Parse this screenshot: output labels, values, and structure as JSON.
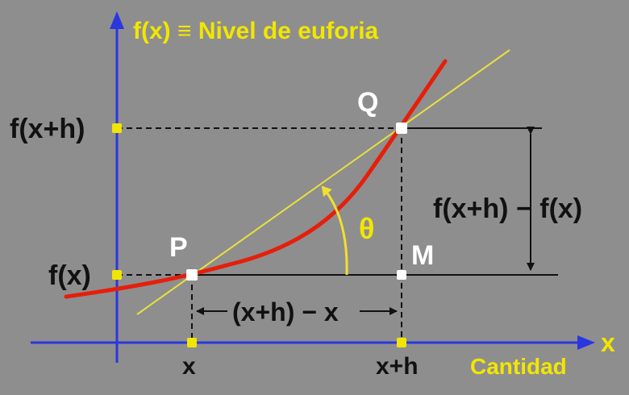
{
  "title": "f(x) ≡ Nivel de euforia",
  "x_axis_letter": "x",
  "x_axis_name": "Cantidad",
  "y_tick_upper": "f(x+h)",
  "y_tick_lower": "f(x)",
  "x_tick_left": "x",
  "x_tick_right": "x+h",
  "point_p": "P",
  "point_q": "Q",
  "point_m": "M",
  "rise_label": "f(x+h) − f(x)",
  "run_label": "(x+h) − x",
  "angle_label": "θ",
  "colors": {
    "background": "#8e8e8e",
    "axes": "#2a36e0",
    "curve": "#e61e0a",
    "secant": "#e8e040",
    "markers": "#f2e600",
    "title": "#f2e600"
  }
}
